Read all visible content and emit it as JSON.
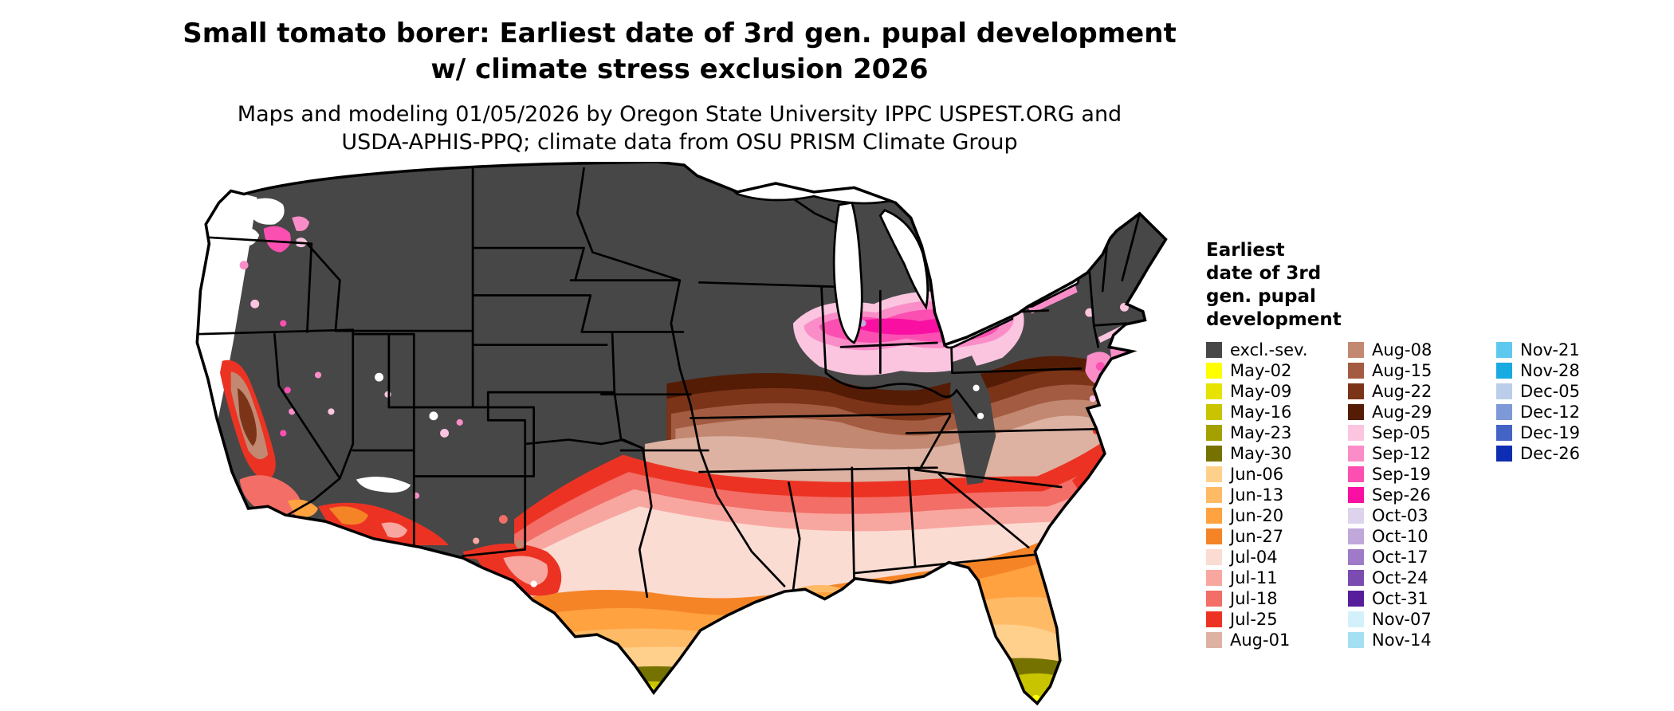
{
  "header": {
    "title_line1": "Small tomato borer: Earliest date of 3rd gen. pupal development",
    "title_line2": "w/ climate stress exclusion 2026",
    "subtitle_line1": "Maps and modeling 01/05/2026 by Oregon State University IPPC USPEST.ORG and",
    "subtitle_line2": "USDA-APHIS-PPQ; climate data from OSU PRISM Climate Group"
  },
  "legend": {
    "title_lines": [
      "Earliest",
      "date of 3rd",
      "gen. pupal",
      "development"
    ],
    "columns": [
      [
        {
          "label": "excl.-sev.",
          "color": "#474747"
        },
        {
          "label": "May-02",
          "color": "#FFFF00"
        },
        {
          "label": "May-09",
          "color": "#E6E300"
        },
        {
          "label": "May-16",
          "color": "#C9C400"
        },
        {
          "label": "May-23",
          "color": "#A3A000"
        },
        {
          "label": "May-30",
          "color": "#767200"
        },
        {
          "label": "Jun-06",
          "color": "#FFD08C"
        },
        {
          "label": "Jun-13",
          "color": "#FFBA66"
        },
        {
          "label": "Jun-20",
          "color": "#FFA23F"
        },
        {
          "label": "Jun-27",
          "color": "#F58426"
        },
        {
          "label": "Jul-04",
          "color": "#FBDCD3"
        },
        {
          "label": "Jul-11",
          "color": "#F8A7A0"
        },
        {
          "label": "Jul-18",
          "color": "#F26E66"
        },
        {
          "label": "Jul-25",
          "color": "#EC3323"
        },
        {
          "label": "Aug-01",
          "color": "#DDB2A2"
        }
      ],
      [
        {
          "label": "Aug-08",
          "color": "#C38871"
        },
        {
          "label": "Aug-15",
          "color": "#A35C41"
        },
        {
          "label": "Aug-22",
          "color": "#7C3418"
        },
        {
          "label": "Aug-29",
          "color": "#551C05"
        },
        {
          "label": "Sep-05",
          "color": "#FBC5E0"
        },
        {
          "label": "Sep-12",
          "color": "#FA8DC8"
        },
        {
          "label": "Sep-19",
          "color": "#FB4FB1"
        },
        {
          "label": "Sep-26",
          "color": "#F910A3"
        },
        {
          "label": "Oct-03",
          "color": "#DED3EC"
        },
        {
          "label": "Oct-10",
          "color": "#C0A8DB"
        },
        {
          "label": "Oct-17",
          "color": "#9E7AC8"
        },
        {
          "label": "Oct-24",
          "color": "#7A4BB1"
        },
        {
          "label": "Oct-31",
          "color": "#561E9B"
        },
        {
          "label": "Nov-07",
          "color": "#D4F1FB"
        },
        {
          "label": "Nov-14",
          "color": "#A3E0F4"
        }
      ],
      [
        {
          "label": "Nov-21",
          "color": "#5FC8EE"
        },
        {
          "label": "Nov-28",
          "color": "#17ABE2"
        },
        {
          "label": "Dec-05",
          "color": "#BBCDE8"
        },
        {
          "label": "Dec-12",
          "color": "#7D99D8"
        },
        {
          "label": "Dec-19",
          "color": "#4364C5"
        },
        {
          "label": "Dec-26",
          "color": "#0D2EB3"
        }
      ]
    ]
  },
  "map": {
    "description": "Contiguous United States raster map of earliest date of 3rd generation pupal development",
    "no_data_color": "#FFFFFF",
    "state_border_color": "#000000",
    "background_color": "#FFFFFF"
  }
}
